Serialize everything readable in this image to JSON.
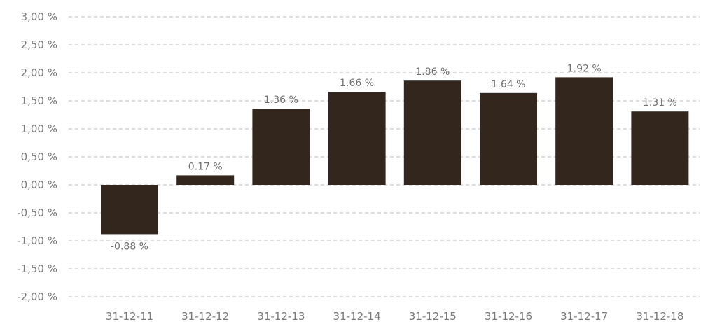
{
  "chart_data": {
    "type": "bar",
    "categories": [
      "31-12-11",
      "31-12-12",
      "31-12-13",
      "31-12-14",
      "31-12-15",
      "31-12-16",
      "31-12-17",
      "31-12-18"
    ],
    "values": [
      -0.88,
      0.17,
      1.36,
      1.66,
      1.86,
      1.64,
      1.92,
      1.31
    ],
    "data_labels": [
      "-0.88 %",
      "0.17 %",
      "1.36 %",
      "1.66 %",
      "1.86 %",
      "1.64 %",
      "1.92 %",
      "1.31 %"
    ],
    "title": "",
    "xlabel": "",
    "ylabel": "",
    "ylim": [
      -2.0,
      3.0
    ],
    "yticks": [
      3.0,
      2.5,
      2.0,
      1.5,
      1.0,
      0.5,
      0.0,
      -0.5,
      -1.0,
      -1.5,
      -2.0
    ],
    "ytick_labels": [
      "3,00 %",
      "2,50 %",
      "2,00 %",
      "1,50 %",
      "1,00 %",
      "0,50 %",
      "0,00 %",
      "-0,50 %",
      "-1,00 %",
      "-1,50 %",
      "-2,00 %"
    ],
    "grid": true,
    "legend": "none",
    "colors": {
      "bar": "#33271d",
      "grid": "#bdbdbd",
      "text": "#7a7a7a"
    }
  }
}
